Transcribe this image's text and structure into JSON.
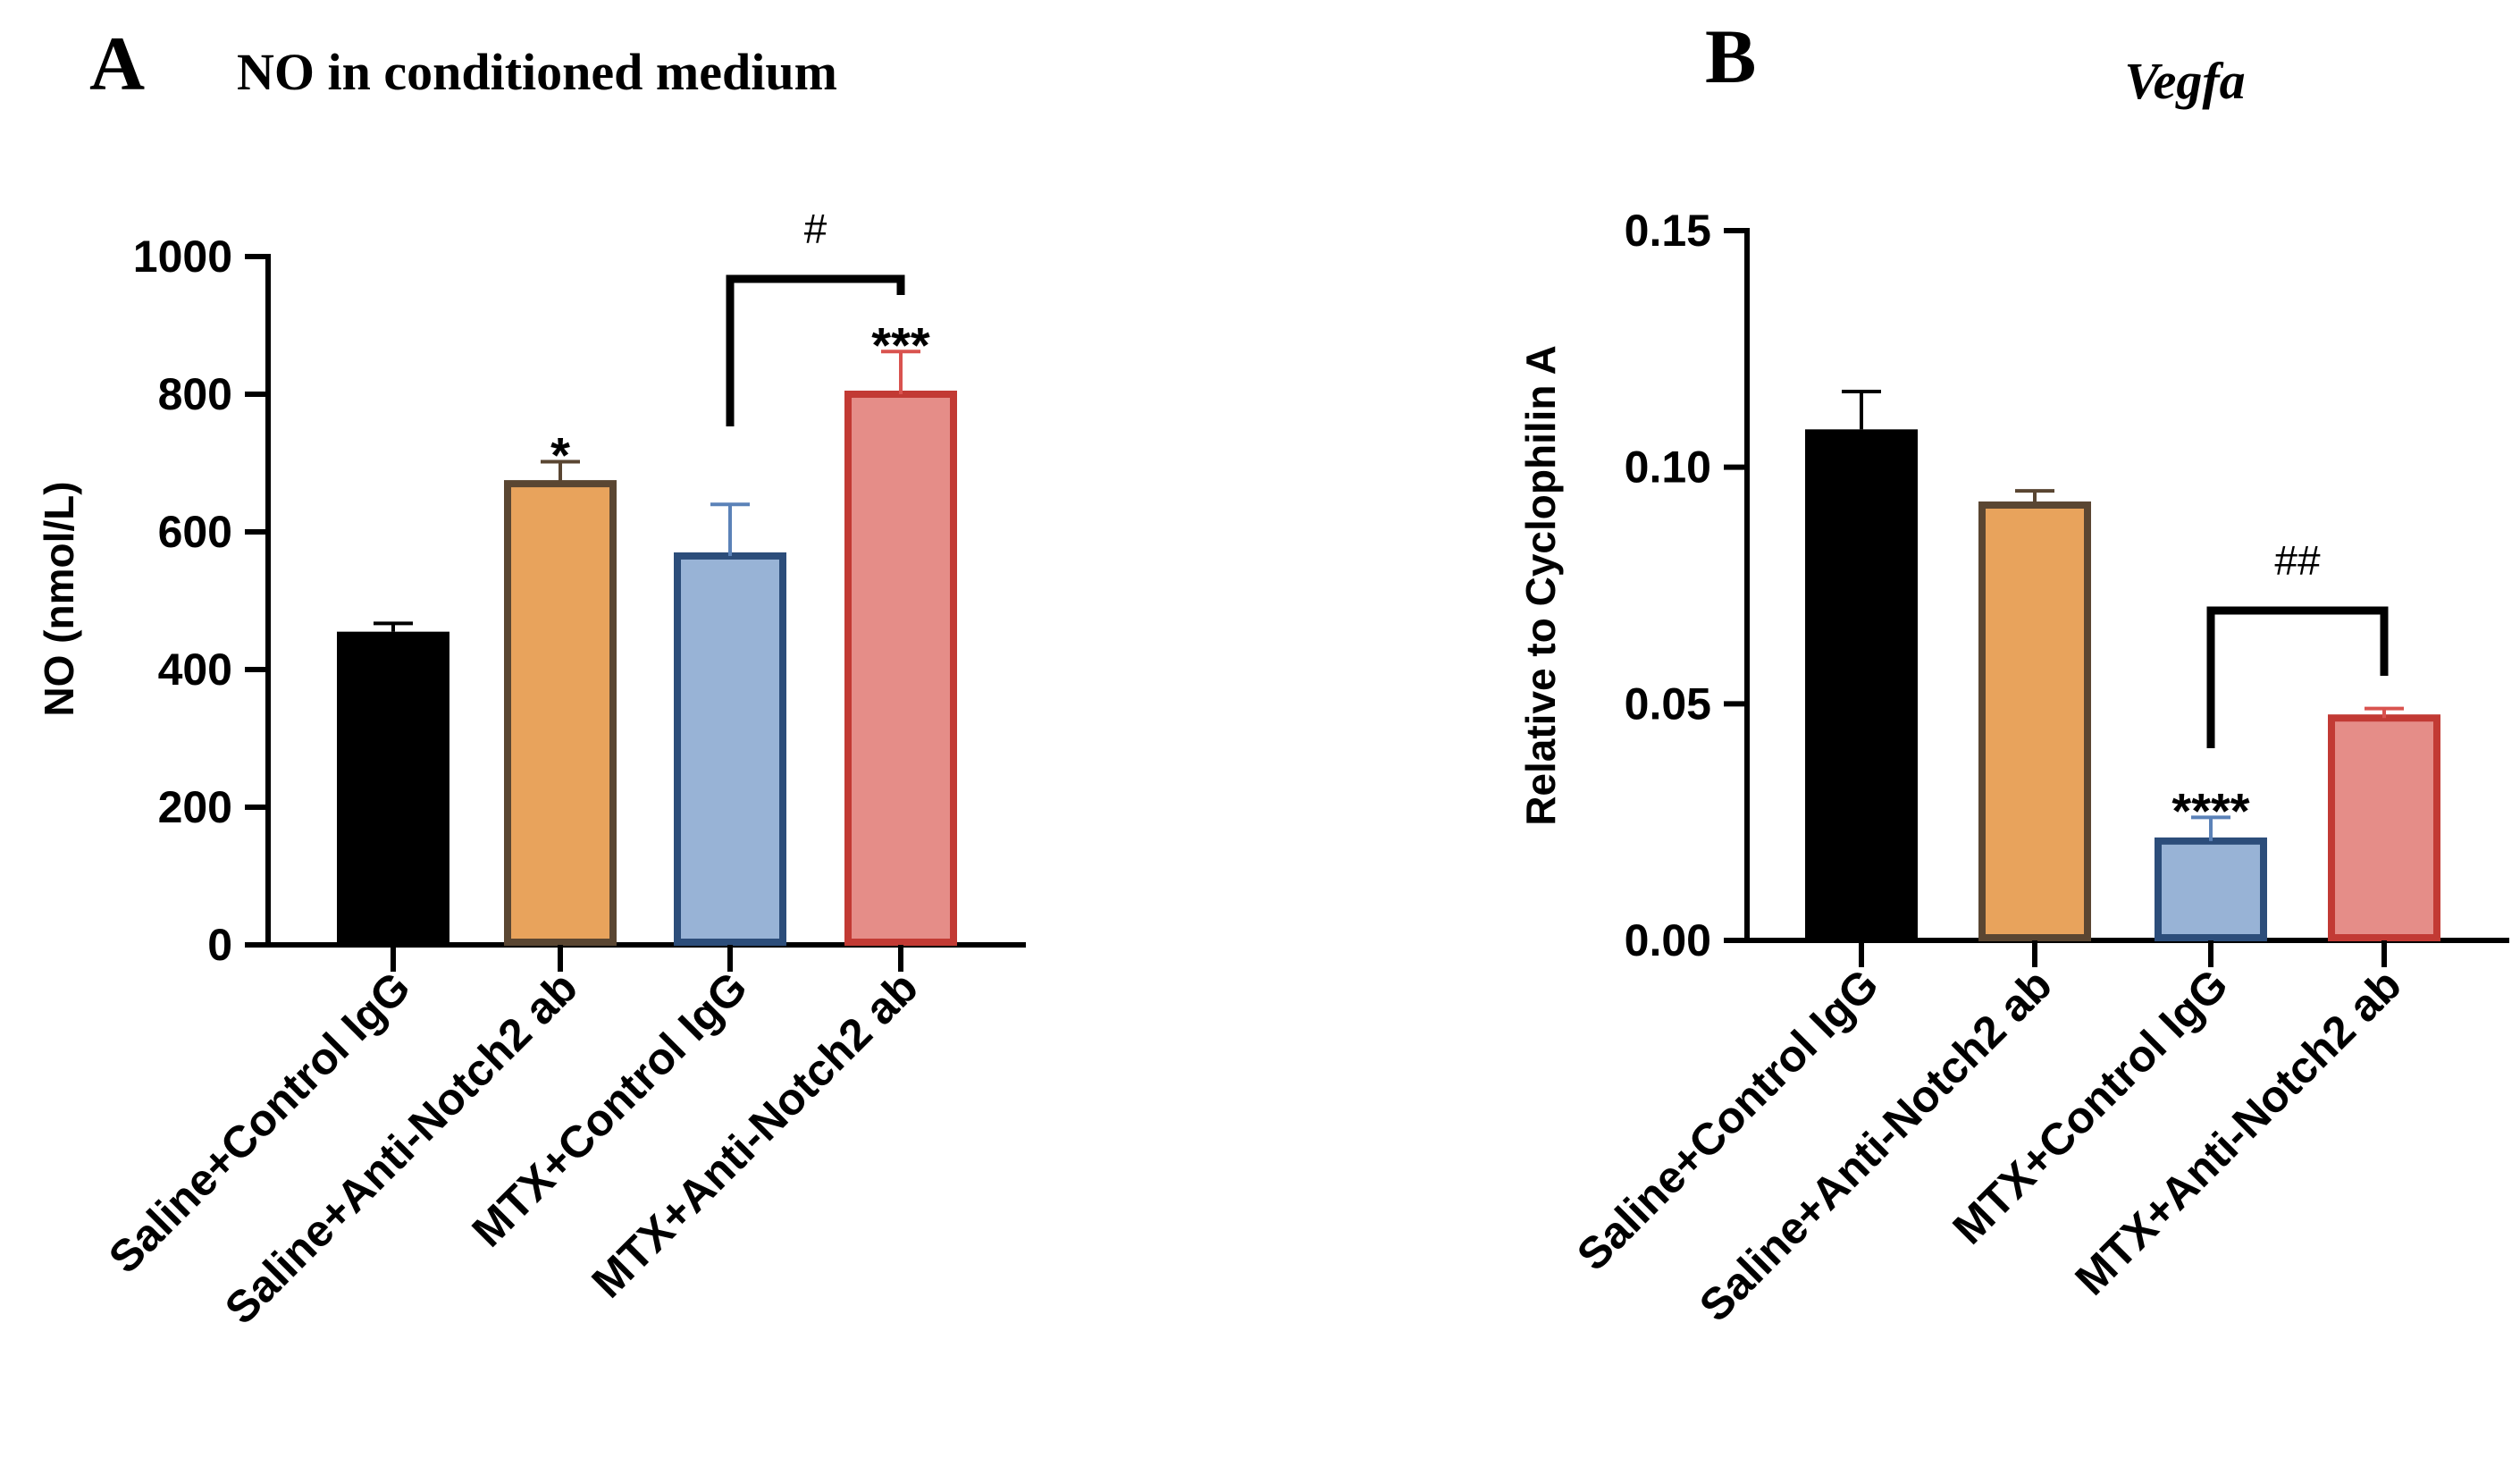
{
  "chart_data": [
    {
      "type": "bar",
      "panel_letter": "A",
      "title": "NO in conditioned medium",
      "title_style": "normal",
      "ylabel": "NO (nmol/L)",
      "xlabel": "",
      "ylim": [
        0,
        1000
      ],
      "yticks": [
        0,
        200,
        400,
        600,
        800,
        1000
      ],
      "ytick_labels": [
        "0",
        "200",
        "400",
        "600",
        "800",
        "1000"
      ],
      "categories": [
        "Saline+Control IgG",
        "Saline+Anti-Notch2 ab",
        "MTX+Control IgG",
        "MTX+Anti-Notch2 ab"
      ],
      "values": [
        455,
        670,
        565,
        800
      ],
      "errors": [
        12,
        32,
        75,
        62
      ],
      "significance": [
        "",
        "*",
        "",
        "***"
      ],
      "bracket": {
        "from": 2,
        "to": 3,
        "label": "#"
      },
      "fill_colors": [
        "#000000",
        "#e8a35c",
        "#98b3d6",
        "#e58d88"
      ],
      "edge_colors": [
        "#000000",
        "#5a4632",
        "#2c4d7a",
        "#c23a34"
      ],
      "error_colors": [
        "#000000",
        "#5a4632",
        "#5b82b8",
        "#d9534f"
      ]
    },
    {
      "type": "bar",
      "panel_letter": "B",
      "title": "Vegfa",
      "title_style": "italic",
      "ylabel": "Relative to Cyclophilin A",
      "xlabel": "",
      "ylim": [
        0,
        0.15
      ],
      "yticks": [
        0,
        0.05,
        0.1,
        0.15
      ],
      "ytick_labels": [
        "0.00",
        "0.05",
        "0.10",
        "0.15"
      ],
      "categories": [
        "Saline+Control IgG",
        "Saline+Anti-Notch2 ab",
        "MTX+Control IgG",
        "MTX+Anti-Notch2 ab"
      ],
      "values": [
        0.108,
        0.092,
        0.021,
        0.047
      ],
      "errors": [
        0.008,
        0.003,
        0.005,
        0.002
      ],
      "significance": [
        "",
        "",
        "****",
        ""
      ],
      "bracket": {
        "from": 2,
        "to": 3,
        "label": "##"
      },
      "fill_colors": [
        "#000000",
        "#e8a35c",
        "#98b3d6",
        "#e58d88"
      ],
      "edge_colors": [
        "#000000",
        "#5a4632",
        "#2c4d7a",
        "#c23a34"
      ],
      "error_colors": [
        "#000000",
        "#5a4632",
        "#5b82b8",
        "#d9534f"
      ]
    }
  ]
}
